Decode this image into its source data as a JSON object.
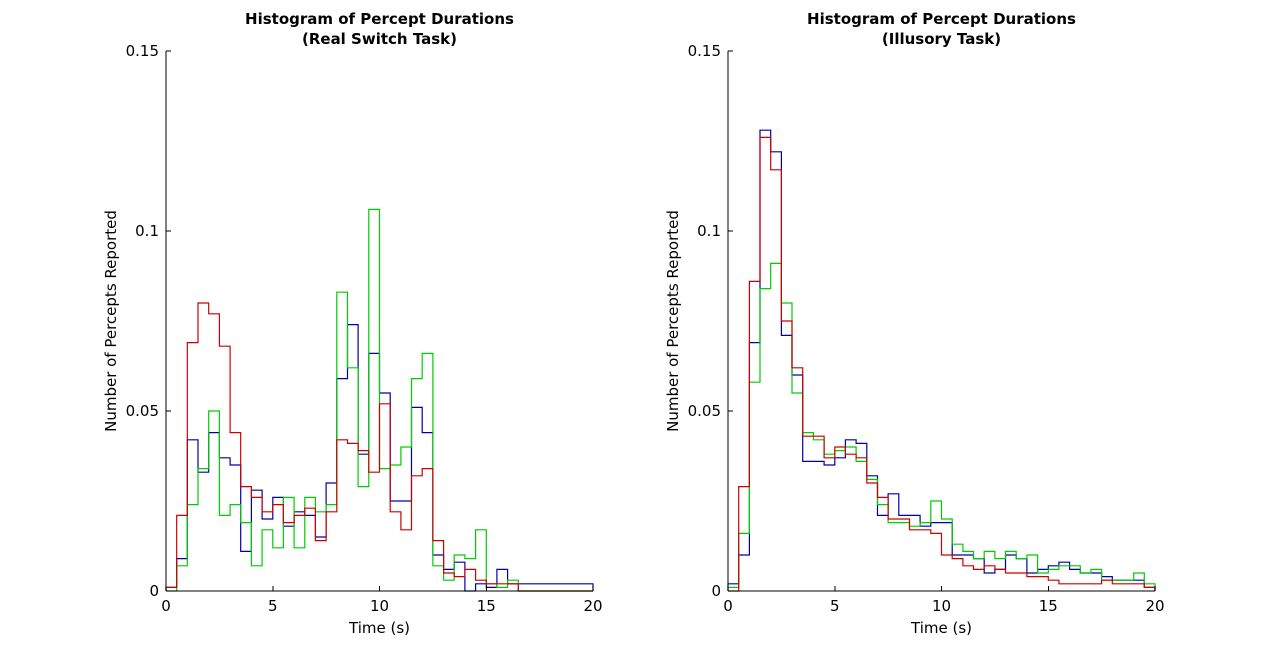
{
  "chart_data": [
    {
      "type": "histogram",
      "title": [
        "Histogram of Percept Durations",
        "(Real Switch Task)"
      ],
      "xlabel": "Time (s)",
      "ylabel": "Number of Percepts Reported",
      "xlim": [
        0,
        20
      ],
      "ylim": [
        0,
        0.15
      ],
      "xticks": [
        "0",
        "5",
        "10",
        "15",
        "20"
      ],
      "yticks": [
        "0",
        "0.05",
        "0.1",
        "0.15"
      ],
      "bin_width": 0.5,
      "bin_start": 0,
      "series": [
        {
          "color": "#0000aa",
          "values": [
            0.001,
            0.009,
            0.042,
            0.033,
            0.044,
            0.037,
            0.035,
            0.011,
            0.028,
            0.02,
            0.026,
            0.018,
            0.022,
            0.021,
            0.015,
            0.03,
            0.059,
            0.074,
            0.038,
            0.066,
            0.055,
            0.025,
            0.025,
            0.051,
            0.044,
            0.01,
            0.006,
            0.008,
            0.0,
            0.002,
            0.001,
            0.006,
            0.002,
            0.002,
            0.002,
            0.002,
            0.002,
            0.002,
            0.002,
            0.002
          ]
        },
        {
          "color": "#00cc00",
          "values": [
            0.0,
            0.007,
            0.024,
            0.034,
            0.05,
            0.021,
            0.024,
            0.019,
            0.007,
            0.017,
            0.012,
            0.026,
            0.012,
            0.026,
            0.022,
            0.024,
            0.083,
            0.062,
            0.029,
            0.106,
            0.034,
            0.035,
            0.04,
            0.059,
            0.066,
            0.007,
            0.003,
            0.01,
            0.009,
            0.017,
            0.002,
            0.001,
            0.003,
            0.0,
            0.0,
            0.0,
            0.0,
            0.0,
            0.0,
            0.0
          ]
        },
        {
          "color": "#cc0000",
          "values": [
            0.001,
            0.021,
            0.069,
            0.08,
            0.077,
            0.068,
            0.044,
            0.029,
            0.026,
            0.022,
            0.024,
            0.019,
            0.021,
            0.023,
            0.014,
            0.022,
            0.042,
            0.041,
            0.039,
            0.033,
            0.052,
            0.022,
            0.017,
            0.032,
            0.034,
            0.014,
            0.005,
            0.004,
            0.006,
            0.003,
            0.002,
            0.002,
            0.002,
            0.0,
            0.0,
            0.0,
            0.0,
            0.0,
            0.0,
            0.0
          ]
        }
      ]
    },
    {
      "type": "histogram",
      "title": [
        "Histogram of Percept Durations",
        "(Illusory Task)"
      ],
      "xlabel": "Time (s)",
      "ylabel": "Number of Percepts Reported",
      "xlim": [
        0,
        20
      ],
      "ylim": [
        0,
        0.15
      ],
      "xticks": [
        "0",
        "5",
        "10",
        "15",
        "20"
      ],
      "yticks": [
        "0",
        "0.05",
        "0.1",
        "0.15"
      ],
      "bin_width": 0.5,
      "bin_start": 0,
      "series": [
        {
          "color": "#0000aa",
          "values": [
            0.002,
            0.01,
            0.069,
            0.128,
            0.122,
            0.071,
            0.06,
            0.036,
            0.036,
            0.035,
            0.037,
            0.042,
            0.041,
            0.032,
            0.021,
            0.027,
            0.021,
            0.021,
            0.018,
            0.019,
            0.019,
            0.01,
            0.01,
            0.009,
            0.005,
            0.006,
            0.01,
            0.009,
            0.005,
            0.006,
            0.007,
            0.008,
            0.006,
            0.005,
            0.005,
            0.004,
            0.003,
            0.003,
            0.003,
            0.001
          ]
        },
        {
          "color": "#00cc00",
          "values": [
            0.001,
            0.016,
            0.058,
            0.084,
            0.091,
            0.08,
            0.055,
            0.044,
            0.042,
            0.038,
            0.039,
            0.04,
            0.036,
            0.031,
            0.024,
            0.019,
            0.019,
            0.018,
            0.019,
            0.025,
            0.02,
            0.013,
            0.011,
            0.009,
            0.011,
            0.009,
            0.011,
            0.009,
            0.01,
            0.005,
            0.006,
            0.007,
            0.007,
            0.005,
            0.006,
            0.003,
            0.003,
            0.003,
            0.005,
            0.002
          ]
        },
        {
          "color": "#cc0000",
          "values": [
            0.0,
            0.029,
            0.086,
            0.126,
            0.117,
            0.075,
            0.062,
            0.043,
            0.043,
            0.037,
            0.04,
            0.038,
            0.037,
            0.03,
            0.026,
            0.02,
            0.02,
            0.017,
            0.017,
            0.016,
            0.01,
            0.009,
            0.007,
            0.006,
            0.007,
            0.006,
            0.005,
            0.005,
            0.004,
            0.004,
            0.003,
            0.002,
            0.002,
            0.002,
            0.002,
            0.003,
            0.002,
            0.002,
            0.002,
            0.001
          ]
        }
      ]
    }
  ]
}
